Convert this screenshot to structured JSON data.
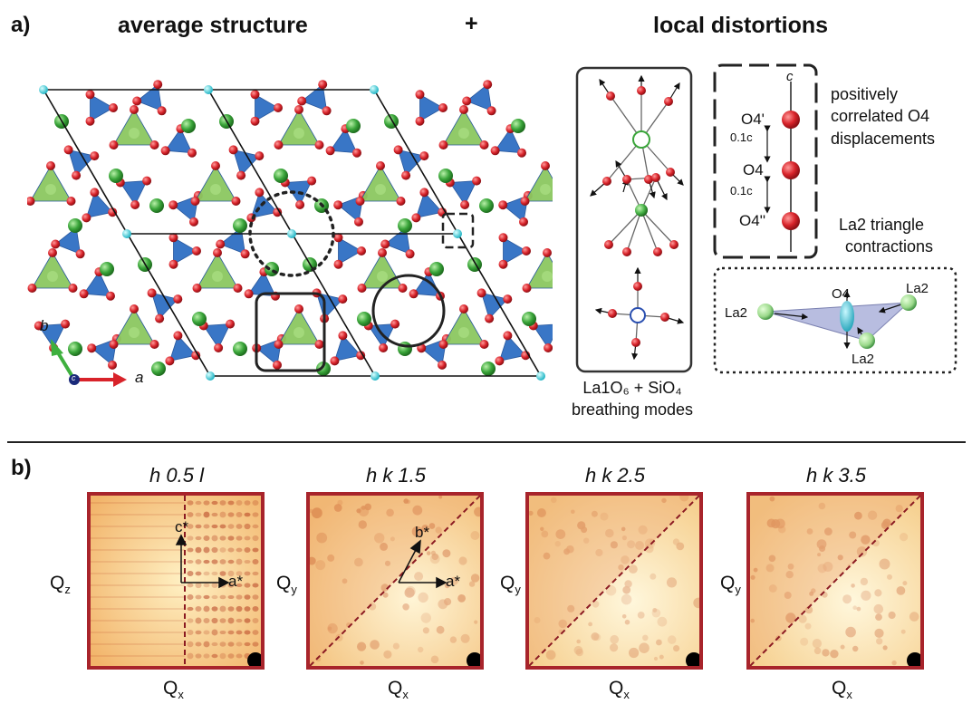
{
  "panel_a": {
    "label": "a)",
    "title_left": "average structure",
    "plus": "+",
    "title_right": "local distortions",
    "axis_a": "a",
    "axis_b": "b",
    "axis_c": "c",
    "breathing": {
      "line1": "La1O₆ + SiO₄",
      "line2": "breathing modes"
    },
    "o4": {
      "c_label": "c",
      "o4p": "O4'",
      "o4": "O4",
      "o4pp": "O4''",
      "spacing1": "0.1c",
      "spacing2": "0.1c",
      "desc_line1": "positively",
      "desc_line2": "correlated O4",
      "desc_line3": "displacements"
    },
    "triangle": {
      "title_line1": "La2 triangle",
      "title_line2": "contractions",
      "la2_left": "La2",
      "la2_right": "La2",
      "la2_bottom": "La2",
      "o4": "O4"
    }
  },
  "panel_b": {
    "label": "b)",
    "maps": [
      {
        "title": "h 0.5 l",
        "ylabel": "Q",
        "ysub": "z",
        "xlabel": "Q",
        "xsub": "x",
        "v1": "c*",
        "v2": "a*"
      },
      {
        "title": "h k 1.5",
        "ylabel": "Q",
        "ysub": "y",
        "xlabel": "Q",
        "xsub": "x",
        "v1": "b*",
        "v2": "a*"
      },
      {
        "title": "h k 2.5",
        "ylabel": "Q",
        "ysub": "y",
        "xlabel": "Q",
        "xsub": "x"
      },
      {
        "title": "h k 3.5",
        "ylabel": "Q",
        "ysub": "y",
        "xlabel": "Q",
        "xsub": "x"
      }
    ]
  },
  "colors": {
    "la_atom": "#3aa53a",
    "o_atom": "#d8232a",
    "si_tet": "#2f6fc4",
    "green_tet": "#8cc860",
    "map_frame": "#a8242b",
    "map_bg": "#f7d58c"
  }
}
